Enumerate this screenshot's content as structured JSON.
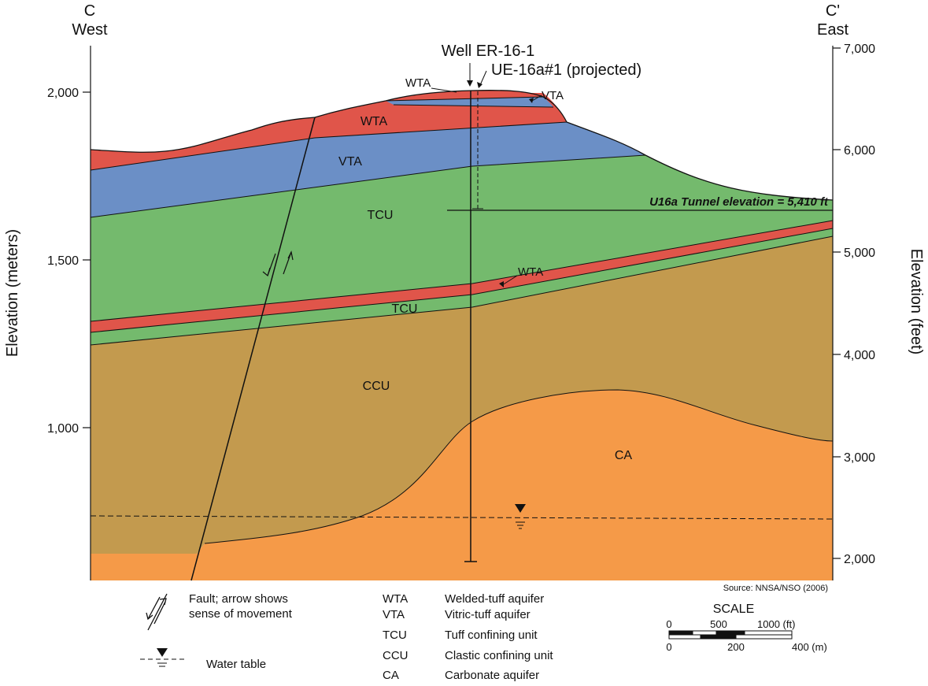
{
  "left_end": {
    "letter": "C",
    "direction": "West"
  },
  "right_end": {
    "letter": "C'",
    "direction": "East"
  },
  "axes": {
    "left_label": "Elevation (meters)",
    "right_label": "Elevation (feet)",
    "left_ticks": [
      "2,000",
      "1,500",
      "1,000"
    ],
    "right_ticks": [
      "7,000",
      "6,000",
      "5,000",
      "4,000",
      "3,000",
      "2,000"
    ]
  },
  "wells": {
    "main": "Well ER-16-1",
    "projected": "UE-16a#1 (projected)"
  },
  "tunnel_label": "U16a Tunnel elevation = 5,410 ft",
  "unit_labels": {
    "wta_top_callout": "WTA",
    "vta_top_callout": "VTA",
    "wta_upper": "WTA",
    "vta_upper": "VTA",
    "tcu_main": "TCU",
    "wta_thin_callout": "WTA",
    "tcu_lower": "TCU",
    "ccu": "CCU",
    "ca": "CA"
  },
  "source": "Source:  NNSA/NSO (2006)",
  "legend": {
    "fault_line1": "Fault; arrow shows",
    "fault_line2": "sense of movement",
    "water_table": "Water table",
    "units": [
      {
        "abbr": "WTA",
        "name": "Welded-tuff aquifer"
      },
      {
        "abbr": "VTA",
        "name": "Vitric-tuff aquifer"
      },
      {
        "abbr": "TCU",
        "name": "Tuff confining unit"
      },
      {
        "abbr": "CCU",
        "name": "Clastic confining unit"
      },
      {
        "abbr": "CA",
        "name": "Carbonate aquifer"
      }
    ]
  },
  "scale": {
    "title": "SCALE",
    "ft_ticks": [
      "0",
      "500",
      "1000 (ft)"
    ],
    "m_ticks": [
      "0",
      "200",
      "400 (m)"
    ]
  },
  "colors": {
    "wta": "#E0554A",
    "vta": "#6B8FC6",
    "tcu": "#74BA6D",
    "ccu": "#C39A4E",
    "ca": "#F59A48"
  }
}
